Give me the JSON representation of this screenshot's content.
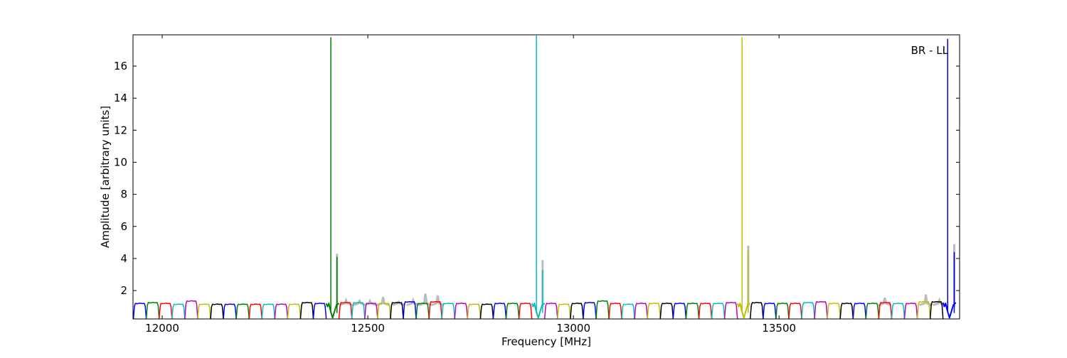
{
  "chart_data": {
    "type": "line",
    "title": "",
    "annotation": "BR - LL",
    "xlabel": "Frequency [MHz]",
    "ylabel": "Amplitude [arbitrary units]",
    "xlim": [
      11929,
      13939
    ],
    "ylim": [
      0.23,
      17.95
    ],
    "xticks": [
      12000,
      12500,
      13000,
      13500
    ],
    "yticks": [
      2,
      4,
      6,
      8,
      10,
      12,
      14,
      16
    ],
    "grid": false,
    "color_cycle": [
      "#0000ff",
      "#008000",
      "#ff0000",
      "#00bfbf",
      "#bf00bf",
      "#bfbf00",
      "#000000"
    ],
    "background_trace_color": "#bbbbbb",
    "subbands": {
      "start_mhz": 11930,
      "width_mhz": 31.25,
      "floor": 0.25,
      "levels": [
        1.2,
        1.25,
        1.2,
        1.15,
        1.35,
        1.15,
        1.15,
        1.15,
        1.15,
        1.15,
        1.15,
        1.15,
        1.15,
        1.25,
        1.2,
        1.2,
        1.25,
        1.25,
        1.2,
        1.2,
        1.25,
        1.3,
        1.2,
        1.3,
        1.2,
        1.2,
        1.15,
        1.15,
        1.2,
        1.2,
        1.2,
        1.2,
        1.2,
        1.15,
        1.2,
        1.25,
        1.35,
        1.2,
        1.15,
        1.2,
        1.2,
        1.2,
        1.2,
        1.2,
        1.2,
        1.2,
        1.25,
        1.2,
        1.25,
        1.2,
        1.2,
        1.2,
        1.25,
        1.3,
        1.2,
        1.2,
        1.2,
        1.2,
        1.25,
        1.2,
        1.2,
        1.3,
        1.3,
        1.25
      ],
      "notch_bands": [
        15,
        31,
        47,
        63
      ]
    },
    "spikes": [
      {
        "freq": 12410,
        "amp": 17.8,
        "color": "#008000"
      },
      {
        "freq": 12425,
        "amp": 4.1,
        "color": "#008000",
        "background_amp": 4.3
      },
      {
        "freq": 12910,
        "amp": 17.9,
        "color": "#00bfbf"
      },
      {
        "freq": 12925,
        "amp": 3.3,
        "color": "#00bfbf",
        "background_amp": 3.9
      },
      {
        "freq": 13410,
        "amp": 17.8,
        "color": "#bfbf00"
      },
      {
        "freq": 13425,
        "amp": 4.5,
        "color": "#bfbf00",
        "background_amp": 4.8
      },
      {
        "freq": 13910,
        "amp": 17.7,
        "color": "#0000ff"
      },
      {
        "freq": 13926,
        "amp": 4.4,
        "color": "#0000ff",
        "background_amp": 4.9
      }
    ],
    "background_peaks": [
      {
        "freq": 12447,
        "amp": 1.4
      },
      {
        "freq": 12480,
        "amp": 1.35
      },
      {
        "freq": 12505,
        "amp": 1.35
      },
      {
        "freq": 12537,
        "amp": 1.6
      },
      {
        "freq": 12575,
        "amp": 1.3
      },
      {
        "freq": 12610,
        "amp": 1.4
      },
      {
        "freq": 12640,
        "amp": 1.8
      },
      {
        "freq": 12670,
        "amp": 1.7
      },
      {
        "freq": 13757,
        "amp": 1.55
      },
      {
        "freq": 13857,
        "amp": 1.75
      },
      {
        "freq": 13890,
        "amp": 1.4
      }
    ]
  }
}
